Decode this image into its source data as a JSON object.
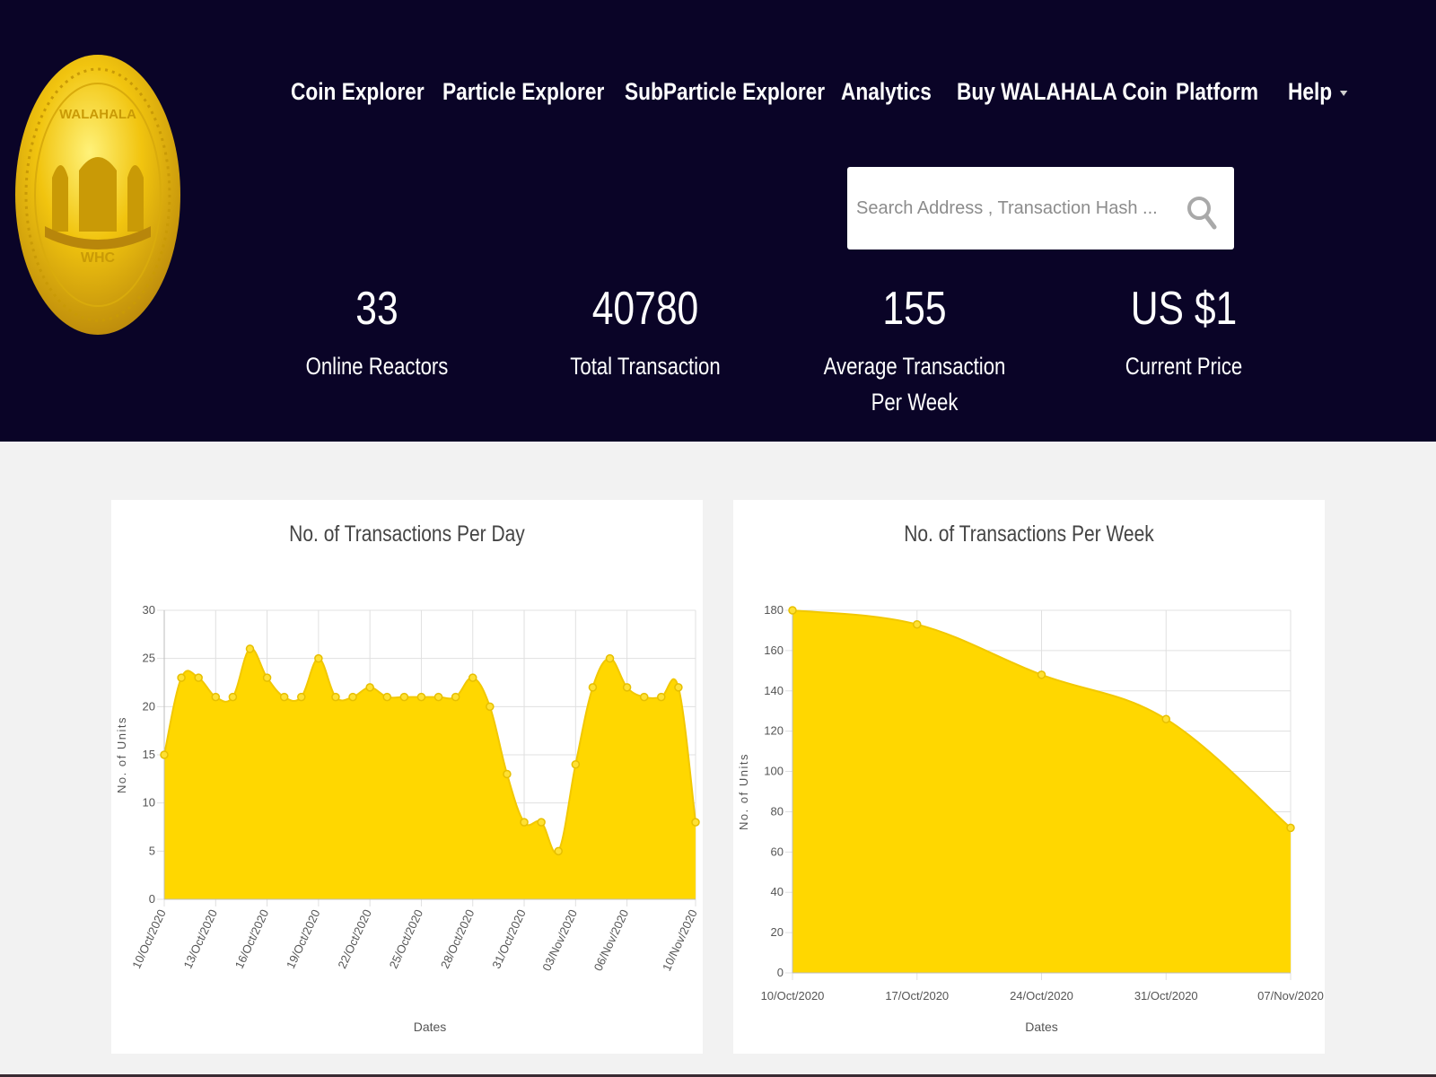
{
  "header": {
    "nav": [
      {
        "label": "Coin Explorer"
      },
      {
        "label": "Particle Explorer"
      },
      {
        "label": "SubParticle Explorer"
      },
      {
        "label": "Analytics"
      },
      {
        "label": "Buy WALAHALA Coin"
      },
      {
        "label": "Platform"
      },
      {
        "label": "Help"
      }
    ],
    "logo": {
      "top_text": "WALAHALA",
      "center_text": "WHC"
    }
  },
  "search": {
    "placeholder": "Search Address , Transaction Hash ...",
    "value": ""
  },
  "stats": [
    {
      "value": "33",
      "label": "Online Reactors"
    },
    {
      "value": "40780",
      "label": "Total Transaction"
    },
    {
      "value": "155",
      "label": "Average Transaction Per Week"
    },
    {
      "value": "US $1",
      "label": "Current Price"
    }
  ],
  "colors": {
    "header_bg": "#0a0427",
    "accent": "#ffd700",
    "gold": "#e6b800"
  },
  "chart_data": [
    {
      "type": "area",
      "title": "No. of Transactions Per Day",
      "xlabel": "Dates",
      "ylabel": "No. of Units",
      "ylim": [
        0,
        30
      ],
      "yticks": [
        0,
        5,
        10,
        15,
        20,
        25,
        30
      ],
      "grid": true,
      "legend": "none",
      "x": [
        "10/Oct/2020",
        "11/Oct/2020",
        "12/Oct/2020",
        "13/Oct/2020",
        "14/Oct/2020",
        "15/Oct/2020",
        "16/Oct/2020",
        "17/Oct/2020",
        "18/Oct/2020",
        "19/Oct/2020",
        "20/Oct/2020",
        "21/Oct/2020",
        "22/Oct/2020",
        "23/Oct/2020",
        "24/Oct/2020",
        "25/Oct/2020",
        "26/Oct/2020",
        "27/Oct/2020",
        "28/Oct/2020",
        "29/Oct/2020",
        "30/Oct/2020",
        "31/Oct/2020",
        "01/Nov/2020",
        "02/Nov/2020",
        "03/Nov/2020",
        "04/Nov/2020",
        "05/Nov/2020",
        "06/Nov/2020",
        "07/Nov/2020",
        "08/Nov/2020",
        "09/Nov/2020",
        "10/Nov/2020"
      ],
      "xtick_labels": [
        "10/Oct/2020",
        "13/Oct/2020",
        "16/Oct/2020",
        "19/Oct/2020",
        "22/Oct/2020",
        "25/Oct/2020",
        "28/Oct/2020",
        "31/Oct/2020",
        "03/Nov/2020",
        "06/Nov/2020",
        "10/Nov/2020"
      ],
      "values": [
        15,
        23,
        23,
        21,
        21,
        26,
        23,
        21,
        21,
        25,
        21,
        21,
        22,
        21,
        21,
        21,
        21,
        21,
        23,
        20,
        13,
        8,
        8,
        5,
        14,
        22,
        25,
        22,
        21,
        21,
        22,
        8
      ]
    },
    {
      "type": "area",
      "title": "No. of Transactions Per Week",
      "xlabel": "Dates",
      "ylabel": "No. of Units",
      "ylim": [
        0,
        180
      ],
      "yticks": [
        0,
        20,
        40,
        60,
        80,
        100,
        120,
        140,
        160,
        180
      ],
      "grid": true,
      "legend": "none",
      "x": [
        "10/Oct/2020",
        "17/Oct/2020",
        "24/Oct/2020",
        "31/Oct/2020",
        "07/Nov/2020"
      ],
      "values": [
        180,
        173,
        148,
        126,
        72
      ]
    }
  ]
}
